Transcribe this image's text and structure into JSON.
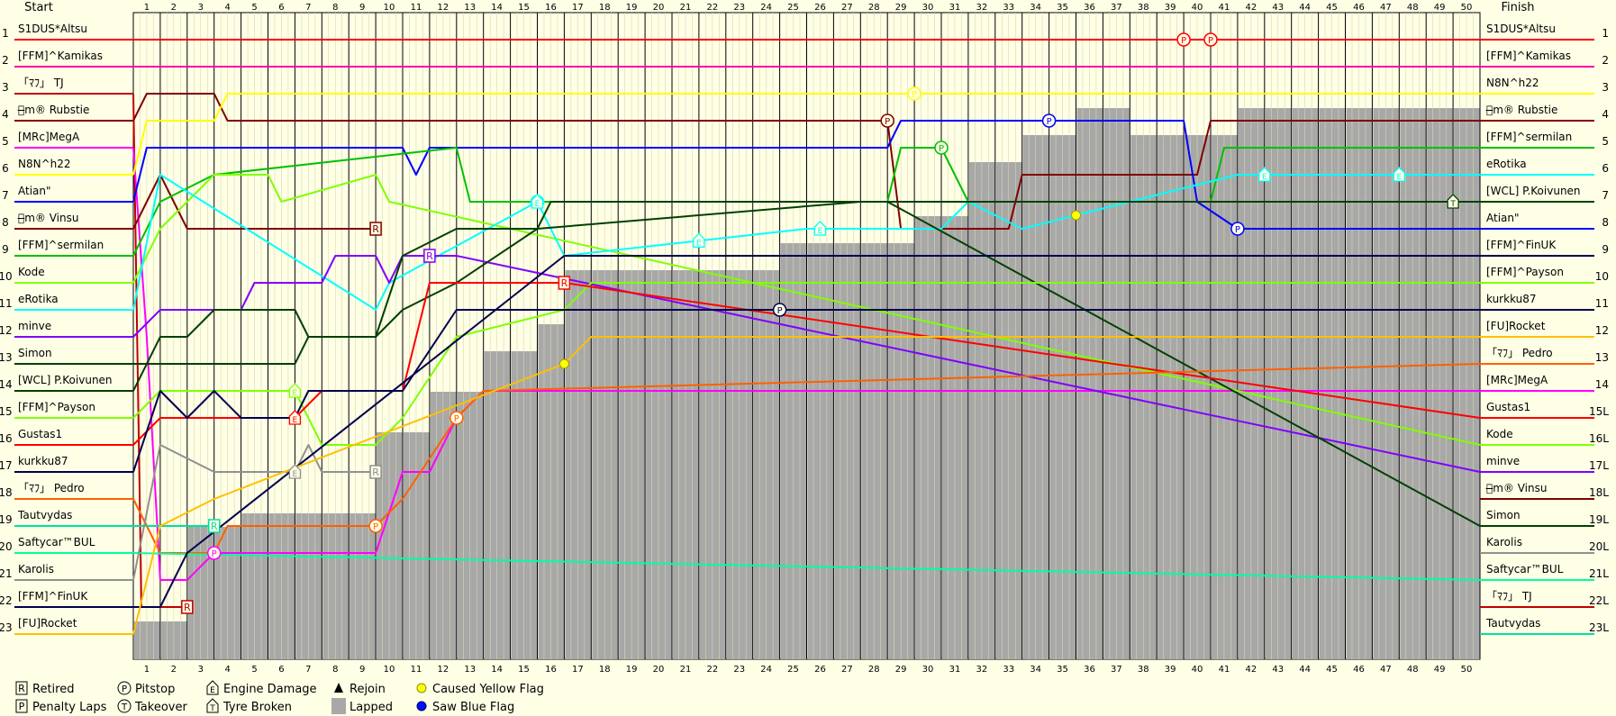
{
  "chart_data": {
    "type": "line",
    "chart_kind": "race position chart",
    "header": {
      "start": "Start",
      "finish": "Finish"
    },
    "laps": [
      1,
      2,
      3,
      4,
      5,
      6,
      7,
      8,
      9,
      10,
      11,
      12,
      13,
      14,
      15,
      16,
      17,
      18,
      19,
      20,
      21,
      22,
      23,
      24,
      25,
      26,
      27,
      28,
      29,
      30,
      31,
      32,
      33,
      34,
      35,
      36,
      37,
      38,
      39,
      40,
      41,
      42,
      43,
      44,
      45,
      46,
      47,
      48,
      49,
      50
    ],
    "positions": [
      1,
      2,
      3,
      4,
      5,
      6,
      7,
      8,
      9,
      10,
      11,
      12,
      13,
      14,
      15,
      16,
      17,
      18,
      19,
      20,
      21,
      22,
      23
    ],
    "finish_position_labels": [
      "1",
      "2",
      "3",
      "4",
      "5",
      "6",
      "7",
      "8",
      "9",
      "10",
      "11",
      "12",
      "13",
      "14",
      "15L",
      "16L",
      "17L",
      "18L",
      "19L",
      "20L",
      "21L",
      "22L",
      "23L"
    ],
    "start_grid": [
      "S1DUS*Altsu",
      "[FFM]^Kamikas",
      "「ﾏﾌ」 TJ",
      "ﾑ̶m® Rubstie",
      "[MRc]MegA",
      "N8N^h22",
      "Atian\"",
      "ﾑ̶m® Vinsu",
      "[FFM]^sermilan",
      "Kode",
      "eRotika",
      "minve",
      "Simon",
      "[WCL] P.Koivunen",
      "[FFM]^Payson",
      "Gustas1",
      "kurkku87",
      "「ﾏﾌ」 Pedro",
      "Tautvydas",
      "Saftycar™BUL",
      "Karolis",
      "[FFM]^FinUK",
      "[FU]Rocket"
    ],
    "finish_order": [
      "S1DUS*Altsu",
      "[FFM]^Kamikas",
      "N8N^h22",
      "ﾑ̶m® Rubstie",
      "[FFM]^sermilan",
      "eRotika",
      "[WCL] P.Koivunen",
      "Atian\"",
      "[FFM]^FinUK",
      "[FFM]^Payson",
      "kurkku87",
      "[FU]Rocket",
      "「ﾏﾌ」 Pedro",
      "[MRc]MegA",
      "Gustas1",
      "Kode",
      "minve",
      "ﾑ̶m® Vinsu",
      "Simon",
      "Karolis",
      "Saftycar™BUL",
      "「ﾏﾌ」 TJ",
      "Tautvydas"
    ],
    "series": [
      {
        "name": "S1DUS*Altsu",
        "color": "#ff0000",
        "positions": [
          [
            0,
            1
          ],
          [
            50,
            1
          ]
        ],
        "events": [
          {
            "lap": 39,
            "type": "pitstop"
          },
          {
            "lap": 40,
            "type": "pitstop"
          }
        ]
      },
      {
        "name": "[FFM]^Kamikas",
        "color": "#ff00a0",
        "positions": [
          [
            0,
            2
          ],
          [
            50,
            2
          ]
        ]
      },
      {
        "name": "「ﾏﾌ」 TJ",
        "color": "#c00000",
        "positions": [
          [
            0,
            3
          ],
          [
            0.3,
            22
          ],
          [
            1,
            22
          ],
          [
            2,
            22
          ]
        ],
        "retired_lap": 2
      },
      {
        "name": "ﾑ̶m® Rubstie",
        "color": "#800000",
        "positions": [
          [
            0,
            4
          ],
          [
            0.5,
            3
          ],
          [
            3,
            3
          ],
          [
            3.5,
            4
          ],
          [
            28,
            4
          ],
          [
            28.5,
            8
          ],
          [
            30,
            8
          ],
          [
            32.5,
            8
          ],
          [
            33,
            6
          ],
          [
            39.5,
            6
          ],
          [
            40,
            4
          ],
          [
            50,
            4
          ]
        ],
        "events": [
          {
            "lap": 28,
            "type": "pitstop"
          }
        ]
      },
      {
        "name": "[MRc]MegA",
        "color": "#ff00ff",
        "positions": [
          [
            0,
            5
          ],
          [
            0.5,
            12
          ],
          [
            1,
            21
          ],
          [
            2,
            21
          ],
          [
            3,
            20
          ],
          [
            9,
            20
          ],
          [
            10,
            17
          ],
          [
            11,
            17
          ],
          [
            12,
            15
          ],
          [
            13,
            14
          ],
          [
            50,
            14
          ]
        ],
        "events": [
          {
            "lap": 3,
            "type": "pitstop"
          }
        ]
      },
      {
        "name": "N8N^h22",
        "color": "#ffff00",
        "positions": [
          [
            0,
            6
          ],
          [
            0.5,
            4
          ],
          [
            3,
            4
          ],
          [
            3.5,
            3
          ],
          [
            50,
            3
          ]
        ],
        "events": [
          {
            "lap": 29,
            "type": "pitstop"
          }
        ]
      },
      {
        "name": "Atian\"",
        "color": "#0000ff",
        "positions": [
          [
            0,
            7
          ],
          [
            0.5,
            5
          ],
          [
            10,
            5
          ],
          [
            10.5,
            6
          ],
          [
            11,
            5
          ],
          [
            12,
            5
          ],
          [
            28,
            5
          ],
          [
            28.5,
            4
          ],
          [
            39,
            4
          ],
          [
            39.5,
            7
          ],
          [
            41,
            8
          ],
          [
            50,
            8
          ]
        ],
        "events": [
          {
            "lap": 34,
            "type": "pitstop"
          },
          {
            "lap": 41,
            "type": "pitstop"
          }
        ]
      },
      {
        "name": "ﾑ̶m® Vinsu",
        "color": "#800000",
        "positions": [
          [
            0,
            8
          ],
          [
            1,
            6
          ],
          [
            2,
            8
          ],
          [
            3,
            8
          ],
          [
            4,
            8
          ],
          [
            9,
            8
          ]
        ],
        "retired_lap": 9
      },
      {
        "name": "[FFM]^sermilan",
        "color": "#00c000",
        "positions": [
          [
            0,
            9
          ],
          [
            1,
            7
          ],
          [
            3,
            6
          ],
          [
            12,
            5
          ],
          [
            12.5,
            7
          ],
          [
            15,
            7
          ],
          [
            28,
            7
          ],
          [
            28.5,
            5
          ],
          [
            30,
            5
          ],
          [
            31,
            7
          ],
          [
            40,
            7
          ],
          [
            40.5,
            5
          ],
          [
            50,
            5
          ]
        ],
        "events": [
          {
            "lap": 30,
            "type": "pitstop"
          }
        ]
      },
      {
        "name": "Kode",
        "color": "#80ff00",
        "positions": [
          [
            0,
            10
          ],
          [
            1,
            8
          ],
          [
            3,
            6
          ],
          [
            5,
            6
          ],
          [
            5.5,
            7
          ],
          [
            9,
            6
          ],
          [
            9.5,
            7
          ],
          [
            50,
            16
          ]
        ]
      },
      {
        "name": "eRotika",
        "color": "#00ffff",
        "positions": [
          [
            0,
            11
          ],
          [
            1,
            6
          ],
          [
            9,
            11
          ],
          [
            9.5,
            10
          ],
          [
            15,
            7
          ],
          [
            16,
            9
          ],
          [
            25,
            8
          ],
          [
            30,
            8
          ],
          [
            31,
            7
          ],
          [
            33,
            8
          ],
          [
            41,
            6
          ],
          [
            50,
            6
          ]
        ],
        "events": [
          {
            "lap": 15,
            "type": "pitstop"
          },
          {
            "lap": 15,
            "type": "engine_damage"
          },
          {
            "lap": 21,
            "type": "engine_damage"
          },
          {
            "lap": 25.5,
            "type": "engine_damage"
          },
          {
            "lap": 42,
            "type": "engine_damage"
          },
          {
            "lap": 47,
            "type": "engine_damage"
          },
          {
            "lap": 35,
            "type": "caused_yellow"
          }
        ]
      },
      {
        "name": "minve",
        "color": "#8000ff",
        "positions": [
          [
            0,
            12
          ],
          [
            1,
            11
          ],
          [
            4,
            11
          ],
          [
            4.5,
            10
          ],
          [
            7,
            10
          ],
          [
            7.5,
            9
          ],
          [
            9,
            9
          ],
          [
            9.5,
            10
          ],
          [
            10,
            9
          ],
          [
            11,
            9
          ],
          [
            12,
            9
          ],
          [
            50,
            17
          ]
        ],
        "retired_lap": 11
      },
      {
        "name": "Simon",
        "color": "#004000",
        "positions": [
          [
            0,
            13
          ],
          [
            1,
            13
          ],
          [
            6,
            13
          ],
          [
            6.5,
            12
          ],
          [
            9,
            12
          ],
          [
            10,
            9
          ],
          [
            12,
            8
          ],
          [
            15,
            8
          ],
          [
            15.5,
            7
          ],
          [
            27,
            7
          ],
          [
            28,
            7
          ],
          [
            50,
            19
          ]
        ]
      },
      {
        "name": "[WCL] P.Koivunen",
        "color": "#004000",
        "positions": [
          [
            0,
            14
          ],
          [
            1,
            12
          ],
          [
            2,
            12
          ],
          [
            3,
            11
          ],
          [
            6,
            11
          ],
          [
            6.5,
            12
          ],
          [
            9,
            12
          ],
          [
            10,
            11
          ],
          [
            12,
            10
          ],
          [
            15,
            8
          ],
          [
            27,
            7
          ],
          [
            31,
            7
          ],
          [
            49,
            7
          ],
          [
            50,
            7
          ]
        ],
        "events": [
          {
            "lap": 49,
            "type": "tyre_broken"
          }
        ]
      },
      {
        "name": "[FFM]^Payson",
        "color": "#80ff00",
        "positions": [
          [
            0,
            15
          ],
          [
            1,
            14
          ],
          [
            6,
            14
          ],
          [
            7,
            16
          ],
          [
            9,
            16
          ],
          [
            10,
            15
          ],
          [
            12,
            12
          ],
          [
            16,
            11
          ],
          [
            17,
            10
          ],
          [
            50,
            10
          ]
        ],
        "events": [
          {
            "lap": 6,
            "type": "engine_damage"
          }
        ]
      },
      {
        "name": "Gustas1",
        "color": "#ff0000",
        "positions": [
          [
            0,
            16
          ],
          [
            1,
            15
          ],
          [
            6,
            15
          ],
          [
            7,
            14
          ],
          [
            10,
            14
          ],
          [
            11,
            10
          ],
          [
            16,
            10
          ],
          [
            50,
            15
          ]
        ],
        "events": [
          {
            "lap": 6,
            "type": "engine_damage"
          },
          {
            "lap": 16,
            "type": "retired"
          }
        ]
      },
      {
        "name": "kurkku87",
        "color": "#00004f",
        "positions": [
          [
            0,
            17
          ],
          [
            1,
            14
          ],
          [
            2,
            15
          ],
          [
            3,
            14
          ],
          [
            4,
            15
          ],
          [
            6,
            15
          ],
          [
            6.5,
            14
          ],
          [
            10,
            14
          ],
          [
            12,
            11
          ],
          [
            50,
            11
          ]
        ],
        "events": [
          {
            "lap": 24,
            "type": "pitstop"
          }
        ]
      },
      {
        "name": "「ﾏﾌ」 Pedro",
        "color": "#ff6000",
        "positions": [
          [
            0,
            18
          ],
          [
            1,
            20
          ],
          [
            3,
            20
          ],
          [
            3.5,
            19
          ],
          [
            9,
            19
          ],
          [
            10,
            18
          ],
          [
            12,
            15
          ],
          [
            13,
            14
          ],
          [
            50,
            13
          ]
        ],
        "events": [
          {
            "lap": 9,
            "type": "pitstop"
          },
          {
            "lap": 12,
            "type": "pitstop"
          }
        ]
      },
      {
        "name": "Tautvydas",
        "color": "#00e0a0",
        "positions": [
          [
            0,
            19
          ],
          [
            1,
            19
          ],
          [
            3,
            19
          ]
        ],
        "retired_lap": 3
      },
      {
        "name": "Saftycar™BUL",
        "color": "#00ffa0",
        "positions": [
          [
            0,
            20
          ],
          [
            50,
            21
          ]
        ]
      },
      {
        "name": "Karolis",
        "color": "#909090",
        "positions": [
          [
            0,
            21
          ],
          [
            1,
            16
          ],
          [
            3,
            17
          ],
          [
            6,
            17
          ],
          [
            6.5,
            16
          ],
          [
            7,
            17
          ],
          [
            9,
            17
          ]
        ],
        "events": [
          {
            "lap": 6,
            "type": "engine_damage"
          },
          {
            "lap": 9,
            "type": "retired"
          }
        ]
      },
      {
        "name": "[FFM]^FinUK",
        "color": "#00004f",
        "positions": [
          [
            0,
            22
          ],
          [
            1,
            22
          ],
          [
            2,
            20
          ],
          [
            16,
            9
          ],
          [
            50,
            9
          ]
        ]
      },
      {
        "name": "[FU]Rocket",
        "color": "#ffc000",
        "positions": [
          [
            0,
            23
          ],
          [
            1,
            19
          ],
          [
            3,
            18
          ],
          [
            16,
            13
          ],
          [
            17,
            12
          ],
          [
            50,
            12
          ]
        ],
        "events": [
          {
            "lap": 16,
            "type": "caused_yellow"
          }
        ]
      }
    ],
    "legend": [
      {
        "symbol": "R",
        "shape": "square",
        "label": "Retired"
      },
      {
        "symbol": "P",
        "shape": "circle",
        "label": "Pitstop"
      },
      {
        "symbol": "E",
        "shape": "house",
        "label": "Engine Damage"
      },
      {
        "symbol": "▲",
        "shape": "triangle",
        "label": "Rejoin"
      },
      {
        "symbol": "",
        "shape": "yellow-dot",
        "label": "Caused Yellow Flag"
      },
      {
        "symbol": "P",
        "shape": "square",
        "label": "Penalty Laps"
      },
      {
        "symbol": "T",
        "shape": "circle",
        "label": "Takeover"
      },
      {
        "symbol": "T",
        "shape": "house",
        "label": "Tyre Broken"
      },
      {
        "symbol": "",
        "shape": "grey-box",
        "label": "Lapped"
      },
      {
        "symbol": "",
        "shape": "blue-dot",
        "label": "Saw Blue Flag"
      }
    ]
  }
}
